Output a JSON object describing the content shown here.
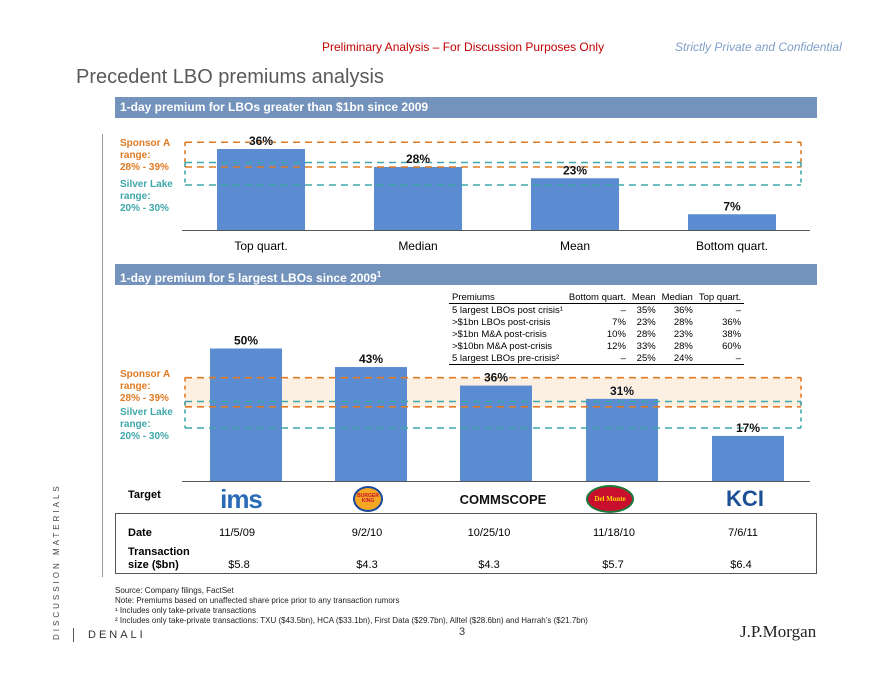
{
  "header": {
    "disclaimer": "Preliminary Analysis – For Discussion Purposes Only",
    "confidential": "Strictly Private and Confidential",
    "title": "Precedent LBO premiums analysis"
  },
  "section1": {
    "heading": "1-day premium for LBOs greater than $1bn since 2009",
    "sponsor_range": [
      "Sponsor A",
      "range:",
      "28% - 39%"
    ],
    "silverlake_range": [
      "Silver Lake",
      "range:",
      "20% - 30%"
    ]
  },
  "section2": {
    "heading": "1-day premium for 5 largest LBOs since 2009",
    "heading_sup": "1",
    "sponsor_range": [
      "Sponsor A",
      "range:",
      "28% - 39%"
    ],
    "silverlake_range": [
      "Silver Lake",
      "range:",
      "20% - 30%"
    ]
  },
  "chart_data": [
    {
      "type": "bar",
      "title": "1-day premium for LBOs greater than $1bn since 2009",
      "categories": [
        "Top quart.",
        "Median",
        "Mean",
        "Bottom quart."
      ],
      "values": [
        36,
        28,
        23,
        7
      ],
      "labels": [
        "36%",
        "28%",
        "23%",
        "7%"
      ],
      "ylim": [
        0,
        40
      ],
      "reference_bands": [
        {
          "name": "Sponsor A range",
          "low": 28,
          "high": 39,
          "color": "#e07b24"
        },
        {
          "name": "Silver Lake range",
          "low": 20,
          "high": 30,
          "color": "#3fa7ab"
        }
      ]
    },
    {
      "type": "bar",
      "title": "1-day premium for 5 largest LBOs since 2009",
      "categories": [
        "IMS",
        "Burger King",
        "CommScope",
        "Del Monte",
        "KCI"
      ],
      "values": [
        50,
        43,
        36,
        31,
        17
      ],
      "labels": [
        "50%",
        "43%",
        "36%",
        "31%",
        "17%"
      ],
      "ylim": [
        0,
        60
      ],
      "reference_bands": [
        {
          "name": "Sponsor A range",
          "low": 28,
          "high": 39,
          "color": "#e07b24"
        },
        {
          "name": "Silver Lake range",
          "low": 20,
          "high": 30,
          "color": "#3fa7ab"
        }
      ]
    }
  ],
  "premium_table": {
    "headers": [
      "Premiums",
      "Bottom quart.",
      "Mean",
      "Median",
      "Top quart."
    ],
    "rows": [
      [
        "5 largest LBOs post crisis¹",
        "–",
        "35%",
        "36%",
        "–"
      ],
      [
        ">$1bn LBOs post-crisis",
        "7%",
        "23%",
        "28%",
        "36%"
      ],
      [
        ">$1bn M&A post-crisis",
        "10%",
        "28%",
        "23%",
        "38%"
      ],
      [
        ">$10bn M&A post-crisis",
        "12%",
        "33%",
        "28%",
        "60%"
      ],
      [
        "5 largest LBOs pre-crisis²",
        "–",
        "25%",
        "24%",
        "–"
      ]
    ]
  },
  "targets": {
    "label": "Target",
    "logos": [
      "ims",
      "BURGER KING",
      "COMMSCOPE",
      "Del Monte",
      "KCI"
    ]
  },
  "deals": {
    "date_label": "Date",
    "size_label_1": "Transaction",
    "size_label_2": "size ($bn)",
    "dates": [
      "11/5/09",
      "9/2/10",
      "10/25/10",
      "11/18/10",
      "7/6/11"
    ],
    "sizes": [
      "$5.8",
      "$4.3",
      "$4.3",
      "$5.7",
      "$6.4"
    ]
  },
  "footnotes": {
    "source": "Source: Company filings, FactSet",
    "note": "Note: Premiums based on unaffected share price prior to any transaction rumors",
    "fn1": "¹ Includes only take-private transactions",
    "fn2": "² Includes only take-private transactions: TXU ($43.5bn), HCA ($33.1bn), First Data ($29.7bn), Alltel ($28.6bn) and Harrah’s ($21.7bn)"
  },
  "footer": {
    "vertical_label": "DISCUSSION MATERIALS",
    "project": "DENALI",
    "page": "3",
    "brand": "J.P.Morgan"
  },
  "colors": {
    "bar": "#5b8bd0",
    "band": "#7393bd",
    "sponsor": "#e07b24",
    "silverlake": "#3fa7ab",
    "red": "#c00000"
  }
}
